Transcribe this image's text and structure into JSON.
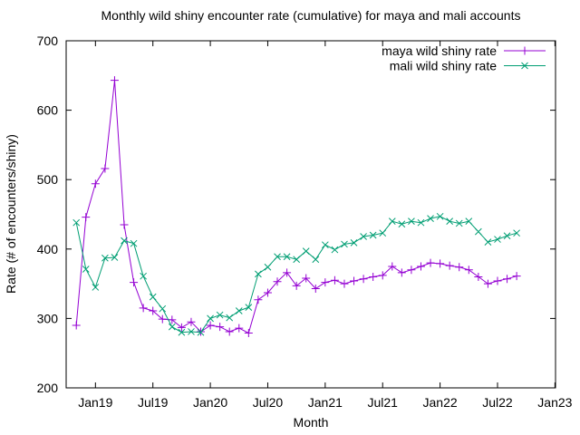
{
  "window": {
    "background": "#ffffff"
  },
  "chart_data": {
    "type": "line",
    "title": "Monthly wild shiny encounter rate (cumulative) for maya and mali accounts",
    "xlabel": "Month",
    "ylabel": "Rate (# of encounters/shiny)",
    "ylim": [
      200,
      700
    ],
    "yticks": [
      200,
      300,
      400,
      500,
      600,
      700
    ],
    "xticks": [
      {
        "label": "Jan19",
        "month_index": 2
      },
      {
        "label": "Jul19",
        "month_index": 8
      },
      {
        "label": "Jan20",
        "month_index": 14
      },
      {
        "label": "Jul20",
        "month_index": 20
      },
      {
        "label": "Jan21",
        "month_index": 26
      },
      {
        "label": "Jul21",
        "month_index": 32
      },
      {
        "label": "Jan22",
        "month_index": 38
      },
      {
        "label": "Jul22",
        "month_index": 44
      },
      {
        "label": "Jan23",
        "month_index": 50
      }
    ],
    "grid": false,
    "legend_position": "top-right-inside",
    "categories": [
      "Nov18",
      "Dec18",
      "Jan19",
      "Feb19",
      "Mar19",
      "Apr19",
      "May19",
      "Jun19",
      "Jul19",
      "Aug19",
      "Sep19",
      "Oct19",
      "Nov19",
      "Dec19",
      "Jan20",
      "Feb20",
      "Mar20",
      "Apr20",
      "May20",
      "Jun20",
      "Jul20",
      "Aug20",
      "Sep20",
      "Oct20",
      "Nov20",
      "Dec20",
      "Jan21",
      "Feb21",
      "Mar21",
      "Apr21",
      "May21",
      "Jun21",
      "Jul21",
      "Aug21",
      "Sep21",
      "Oct21",
      "Nov21",
      "Dec21",
      "Jan22",
      "Feb22",
      "Mar22",
      "Apr22",
      "May22",
      "Jun22",
      "Jul22",
      "Aug22",
      "Sep22"
    ],
    "series": [
      {
        "name": "maya wild shiny rate",
        "color": "#9400d3",
        "marker": "plus",
        "values": [
          290,
          446,
          494,
          516,
          643,
          435,
          352,
          315,
          311,
          299,
          298,
          287,
          295,
          281,
          290,
          288,
          281,
          286,
          279,
          327,
          337,
          353,
          366,
          347,
          358,
          343,
          352,
          355,
          350,
          354,
          357,
          360,
          362,
          375,
          366,
          370,
          375,
          380,
          379,
          376,
          374,
          370,
          360,
          350,
          354,
          357,
          361
        ]
      },
      {
        "name": "mali wild shiny rate",
        "color": "#009e73",
        "marker": "cross",
        "values": [
          438,
          371,
          345,
          387,
          388,
          412,
          408,
          361,
          331,
          314,
          288,
          280,
          281,
          280,
          300,
          305,
          301,
          311,
          316,
          364,
          374,
          389,
          389,
          385,
          397,
          385,
          406,
          399,
          407,
          409,
          418,
          420,
          423,
          440,
          436,
          440,
          438,
          444,
          447,
          440,
          437,
          440,
          425,
          410,
          414,
          419,
          423
        ]
      }
    ]
  }
}
